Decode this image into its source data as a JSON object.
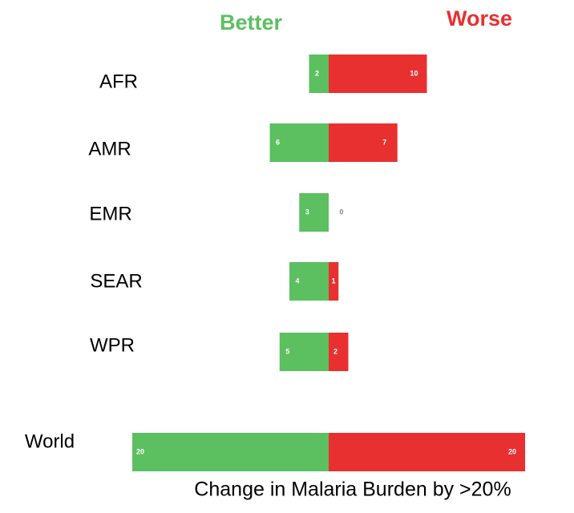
{
  "chart_data": {
    "type": "bar",
    "orientation": "horizontal",
    "layout": "diverging",
    "xlabel": "Change in Malaria Burden by >20%",
    "categories": [
      "AFR",
      "AMR",
      "EMR",
      "SEAR",
      "WPR",
      "World"
    ],
    "series": [
      {
        "name": "Better",
        "color": "#5cbf60",
        "values": [
          2,
          6,
          3,
          4,
          5,
          20
        ]
      },
      {
        "name": "Worse",
        "color": "#e83030",
        "values": [
          10,
          7,
          0,
          1,
          2,
          20
        ]
      }
    ]
  }
}
